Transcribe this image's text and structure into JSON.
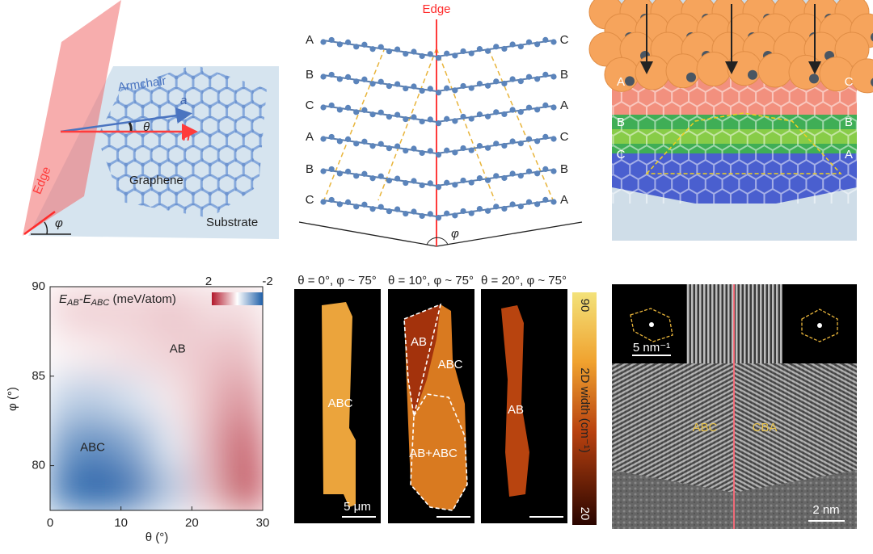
{
  "panel_a": {
    "armchair": "Armchair",
    "a": "a",
    "theta": "θ",
    "n": "n",
    "edge": "Edge",
    "graphene": "Graphene",
    "substrate": "Substrate",
    "phi": "φ"
  },
  "panel_b": {
    "edge": "Edge",
    "left": [
      "A",
      "B",
      "C",
      "A",
      "B",
      "C"
    ],
    "right": [
      "C",
      "B",
      "A",
      "C",
      "B",
      "A"
    ],
    "phi": "φ"
  },
  "panel_c": {
    "left": [
      "A",
      "B",
      "C"
    ],
    "right": [
      "C",
      "B",
      "A"
    ]
  },
  "chart_data": {
    "type": "heatmap",
    "title_parts": [
      "E",
      "AB",
      "-E",
      "ABC",
      " (meV/atom)"
    ],
    "x_label": "θ (°)",
    "y_label": "φ (°)",
    "x": [
      2.5,
      7.5,
      12.5,
      17.5,
      22.5,
      27.5
    ],
    "y": [
      78.75,
      81.25,
      83.75,
      86.25,
      88.75
    ],
    "z": [
      [
        -1.8,
        -2,
        -1.6,
        -0.6,
        0.6,
        1.8
      ],
      [
        -1.3,
        -1.4,
        -1,
        -0.2,
        0.7,
        1.5
      ],
      [
        -0.6,
        -0.6,
        -0.3,
        0.2,
        0.6,
        1.0
      ],
      [
        0.1,
        0.2,
        0.3,
        0.4,
        0.5,
        0.6
      ],
      [
        0.4,
        0.4,
        0.4,
        0.5,
        0.3,
        0.3
      ]
    ],
    "xlim": [
      0,
      30
    ],
    "ylim": [
      77.5,
      90
    ],
    "xticks": [
      0,
      10,
      20,
      30
    ],
    "yticks": [
      80,
      85,
      90
    ],
    "zlim": [
      -2,
      2
    ],
    "zticks": [
      -2,
      2
    ],
    "annotations": [
      {
        "text": "AB",
        "x": 18,
        "y": 86.5
      },
      {
        "text": "ABC",
        "x": 6,
        "y": 81
      }
    ]
  },
  "panel_e": {
    "titles": [
      "θ = 0°, φ ~ 75°",
      "θ = 10°, φ ~ 75°",
      "θ = 20°, φ ~ 75°"
    ],
    "labels": [
      "ABC",
      "AB",
      "ABC",
      "AB+ABC",
      "AB"
    ],
    "scale": "5 μm",
    "colorbar": {
      "top": "90",
      "bottom": "20",
      "label": "2D width (cm⁻¹)"
    }
  },
  "panel_f": {
    "left": "ABC",
    "right": "CBA",
    "fft_scale": "5 nm⁻¹",
    "scale": "2 nm"
  }
}
